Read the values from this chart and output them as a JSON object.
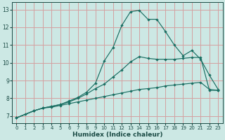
{
  "title": "",
  "xlabel": "Humidex (Indice chaleur)",
  "bg_color": "#cce8e4",
  "grid_color": "#d4a0a0",
  "line_color": "#1a6e62",
  "xlim": [
    -0.5,
    23.5
  ],
  "ylim": [
    6.6,
    13.4
  ],
  "xticks": [
    0,
    1,
    2,
    3,
    4,
    5,
    6,
    7,
    8,
    9,
    10,
    11,
    12,
    13,
    14,
    15,
    16,
    17,
    18,
    19,
    20,
    21,
    22,
    23
  ],
  "yticks": [
    7,
    8,
    9,
    10,
    11,
    12,
    13
  ],
  "line1_x": [
    0,
    1,
    2,
    3,
    4,
    5,
    6,
    7,
    8,
    9,
    10,
    11,
    12,
    13,
    14,
    15,
    16,
    17,
    18,
    19,
    20,
    21,
    22,
    23
  ],
  "line1_y": [
    6.9,
    7.1,
    7.3,
    7.45,
    7.5,
    7.6,
    7.7,
    7.8,
    7.9,
    8.0,
    8.1,
    8.2,
    8.3,
    8.4,
    8.5,
    8.55,
    8.6,
    8.7,
    8.75,
    8.8,
    8.85,
    8.9,
    8.5,
    8.45
  ],
  "line2_x": [
    0,
    2,
    3,
    4,
    5,
    6,
    7,
    8,
    9,
    10,
    11,
    12,
    13,
    14,
    15,
    16,
    17,
    18,
    19,
    20,
    21,
    22,
    23
  ],
  "line2_y": [
    6.9,
    7.3,
    7.45,
    7.55,
    7.65,
    7.8,
    8.0,
    8.25,
    8.55,
    8.8,
    9.2,
    9.6,
    10.05,
    10.35,
    10.25,
    10.2,
    10.2,
    10.2,
    10.25,
    10.3,
    10.3,
    8.45,
    8.45
  ],
  "line3_x": [
    0,
    2,
    3,
    4,
    5,
    6,
    7,
    8,
    9,
    10,
    11,
    12,
    13,
    14,
    15,
    16,
    17,
    18,
    19,
    20,
    21,
    22,
    23
  ],
  "line3_y": [
    6.9,
    7.3,
    7.45,
    7.55,
    7.65,
    7.85,
    8.05,
    8.35,
    8.85,
    10.1,
    10.85,
    12.1,
    12.88,
    12.95,
    12.45,
    12.45,
    11.75,
    11.0,
    10.4,
    10.7,
    10.2,
    9.3,
    8.5
  ]
}
